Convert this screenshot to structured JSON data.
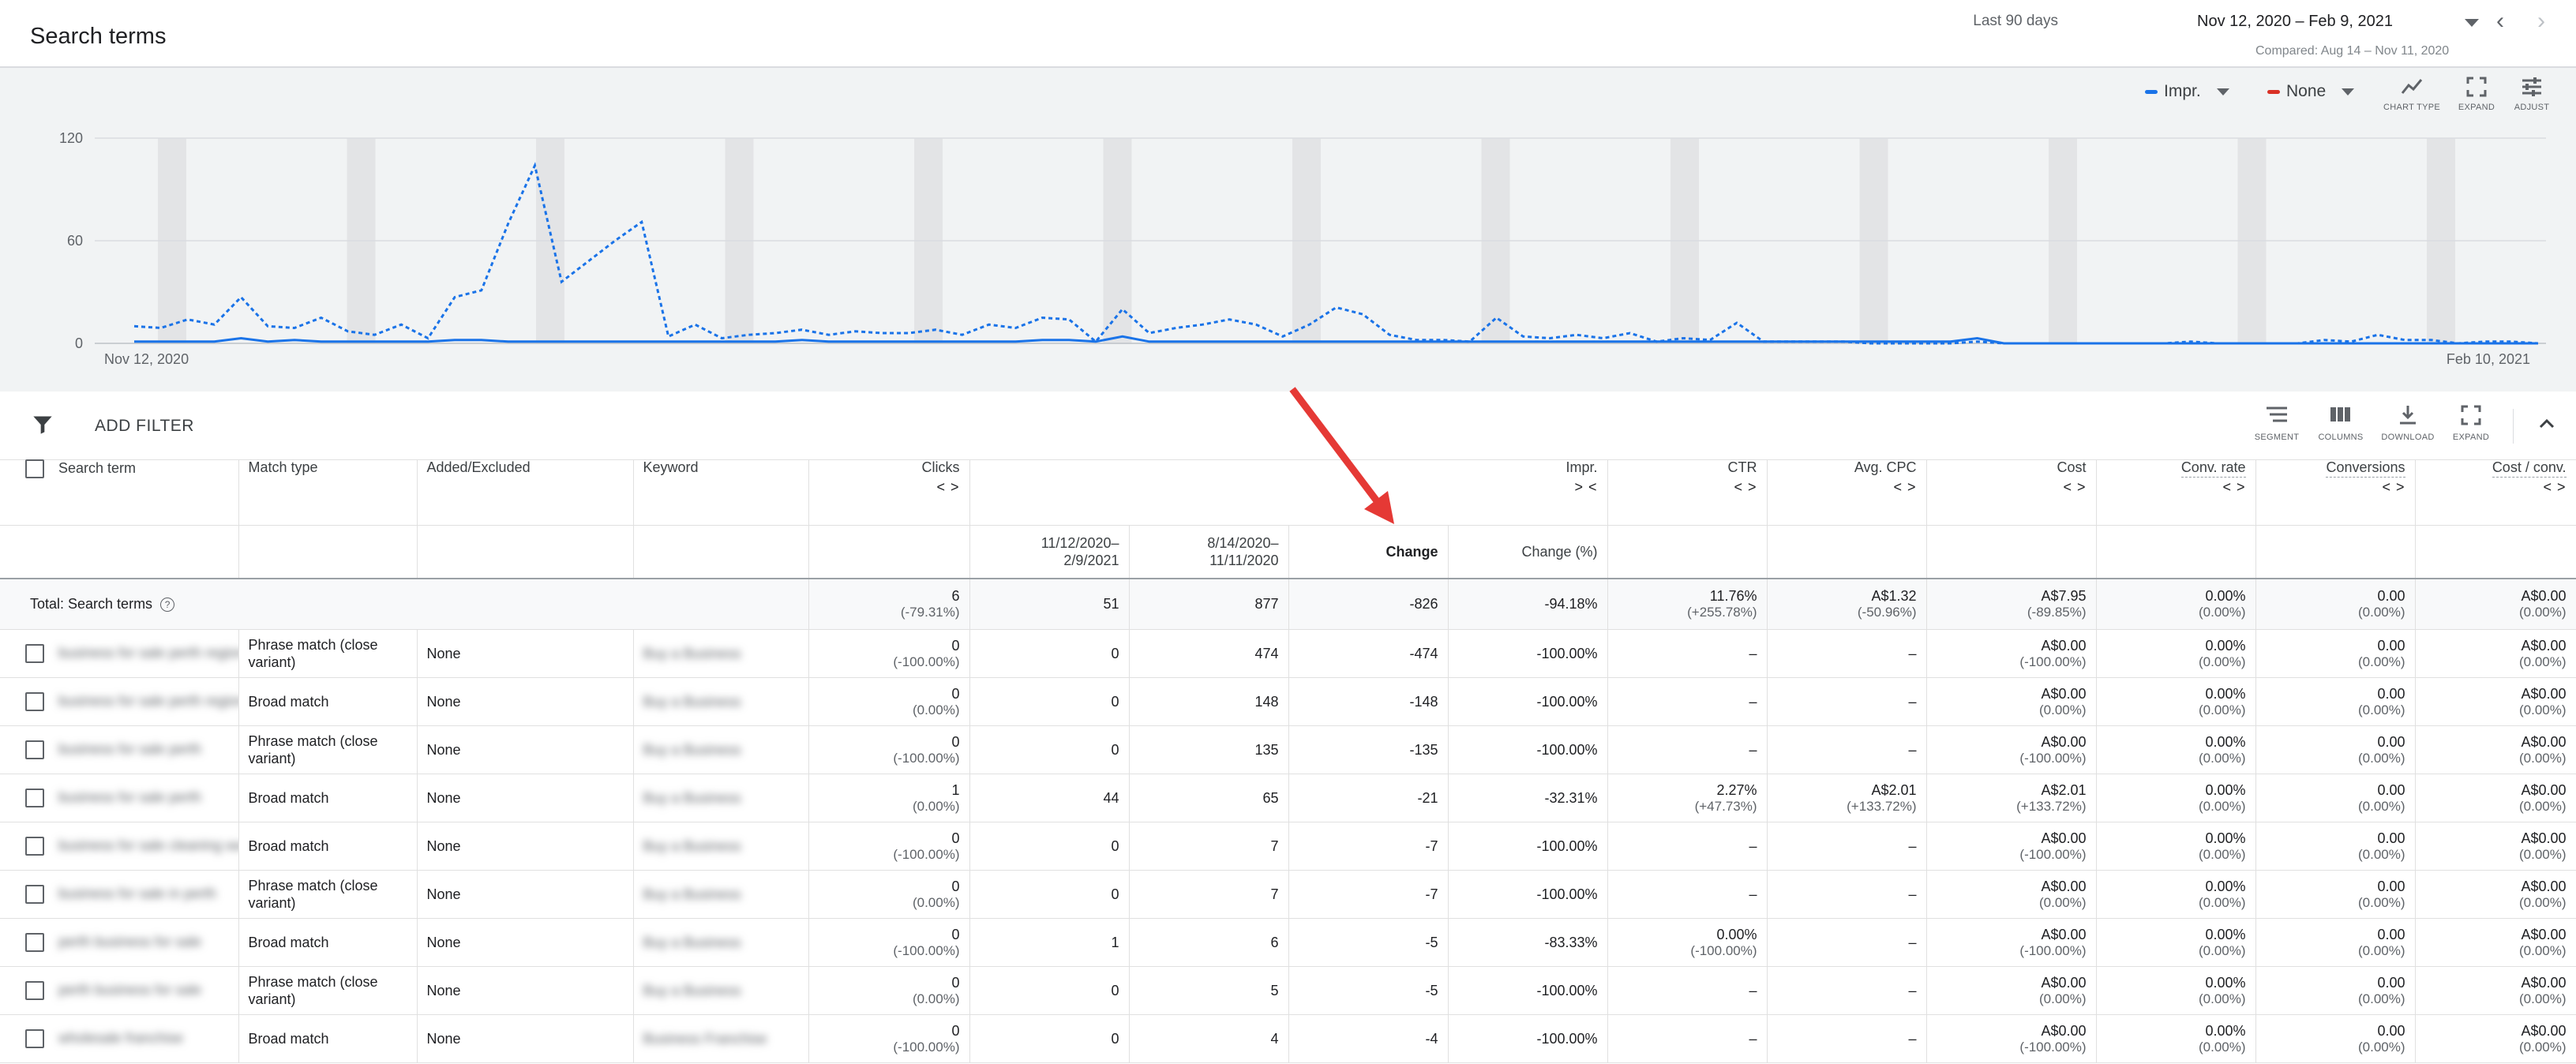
{
  "header": {
    "title": "Search terms",
    "date_label": "Last 90 days",
    "date_range": "Nov 12, 2020 – Feb 9, 2021",
    "compared": "Compared: Aug 14 – Nov 11, 2020"
  },
  "chart_controls": {
    "metric1": "Impr.",
    "metric2": "None",
    "chart_type_label": "CHART TYPE",
    "expand_label": "EXPAND",
    "adjust_label": "ADJUST",
    "colors": {
      "metric1": "#1a73e8",
      "metric2": "#d93025"
    }
  },
  "chart_data": {
    "type": "line",
    "ylim": [
      0,
      120
    ],
    "yticks": [
      "120",
      "60",
      "0"
    ],
    "x_start_label": "Nov 12, 2020",
    "x_end_label": "Feb 10, 2021",
    "series": [
      {
        "style": "dashed",
        "values": [
          10,
          9,
          14,
          11,
          27,
          10,
          9,
          15,
          7,
          5,
          11,
          3,
          27,
          31,
          70,
          104,
          36,
          48,
          60,
          71,
          4,
          11,
          3,
          5,
          6,
          8,
          5,
          7,
          6,
          6,
          8,
          5,
          11,
          9,
          15,
          14,
          1,
          20,
          6,
          9,
          11,
          14,
          11,
          4,
          11,
          21,
          17,
          5,
          2,
          2,
          1,
          15,
          4,
          3,
          5,
          3,
          6,
          1,
          3,
          2,
          12,
          1,
          1,
          1,
          1,
          0,
          0,
          0,
          0,
          1,
          0,
          0,
          0,
          0,
          0,
          0,
          0,
          1,
          0,
          0,
          0,
          0,
          2,
          1,
          5,
          2,
          2,
          0,
          1,
          1,
          0
        ]
      },
      {
        "style": "solid",
        "values": [
          1,
          1,
          1,
          1,
          3,
          1,
          2,
          1,
          1,
          1,
          1,
          1,
          2,
          2,
          1,
          1,
          1,
          1,
          1,
          1,
          1,
          1,
          1,
          1,
          1,
          2,
          1,
          1,
          1,
          1,
          1,
          1,
          1,
          1,
          2,
          2,
          1,
          4,
          1,
          1,
          1,
          1,
          1,
          1,
          1,
          1,
          1,
          1,
          1,
          1,
          1,
          1,
          1,
          1,
          1,
          1,
          1,
          1,
          1,
          1,
          1,
          1,
          1,
          1,
          1,
          1,
          1,
          1,
          1,
          3,
          0,
          0,
          0,
          0,
          0,
          0,
          0,
          0,
          0,
          0,
          0,
          0,
          0,
          0,
          0,
          0,
          0,
          0,
          0,
          0,
          0
        ]
      }
    ]
  },
  "filter_bar": {
    "add_filter": "ADD FILTER",
    "segment": "SEGMENT",
    "columns": "COLUMNS",
    "download": "DOWNLOAD",
    "expand": "EXPAND"
  },
  "columns": {
    "search_term": "Search term",
    "match_type": "Match type",
    "added_excluded": "Added/Excluded",
    "keyword": "Keyword",
    "clicks": "Clicks",
    "impr": "Impr.",
    "ctr": "CTR",
    "avg_cpc": "Avg. CPC",
    "cost": "Cost",
    "conv_rate": "Conv. rate",
    "conversions": "Conversions",
    "cost_conv": "Cost / conv.",
    "sort_toggle": "< >",
    "sort_toggle_collapsed": "> <",
    "sub_period1": "11/12/2020–\n2/9/2021",
    "sub_period2": "8/14/2020–\n11/11/2020",
    "sub_change": "Change",
    "sub_change_pct": "Change (%)"
  },
  "total": {
    "label": "Total: Search terms",
    "clicks": "6",
    "clicks_change": "(-79.31%)",
    "impr_p1": "51",
    "impr_p2": "877",
    "impr_change": "-826",
    "impr_change_pct": "-94.18%",
    "ctr": "11.76%",
    "ctr_change": "(+255.78%)",
    "avg_cpc": "A$1.32",
    "avg_cpc_change": "(-50.96%)",
    "cost": "A$7.95",
    "cost_change": "(-89.85%)",
    "conv_rate": "0.00%",
    "conv_rate_change": "(0.00%)",
    "conversions": "0.00",
    "conversions_change": "(0.00%)",
    "cost_conv": "A$0.00",
    "cost_conv_change": "(0.00%)"
  },
  "rows": [
    {
      "term": "business for sale perth region",
      "match": "Phrase match (close variant)",
      "added": "None",
      "keyword": "Buy a Business",
      "clicks": "0",
      "clicks_change": "(-100.00%)",
      "impr_p1": "0",
      "impr_p2": "474",
      "impr_change": "-474",
      "impr_change_pct": "-100.00%",
      "ctr": "–",
      "ctr_change": "",
      "cpc": "–",
      "cpc_change": "",
      "cost": "A$0.00",
      "cost_change": "(-100.00%)",
      "conv_rate": "0.00%",
      "conv_rate_change": "(0.00%)",
      "conversions": "0.00",
      "conversions_change": "(0.00%)",
      "cost_conv": "A$0.00",
      "cost_conv_change": "(0.00%)"
    },
    {
      "term": "business for sale perth region",
      "match": "Broad match",
      "added": "None",
      "keyword": "Buy a Business",
      "clicks": "0",
      "clicks_change": "(0.00%)",
      "impr_p1": "0",
      "impr_p2": "148",
      "impr_change": "-148",
      "impr_change_pct": "-100.00%",
      "ctr": "–",
      "ctr_change": "",
      "cpc": "–",
      "cpc_change": "",
      "cost": "A$0.00",
      "cost_change": "(0.00%)",
      "conv_rate": "0.00%",
      "conv_rate_change": "(0.00%)",
      "conversions": "0.00",
      "conversions_change": "(0.00%)",
      "cost_conv": "A$0.00",
      "cost_conv_change": "(0.00%)"
    },
    {
      "term": "business for sale perth",
      "match": "Phrase match (close variant)",
      "added": "None",
      "keyword": "Buy a Business",
      "clicks": "0",
      "clicks_change": "(-100.00%)",
      "impr_p1": "0",
      "impr_p2": "135",
      "impr_change": "-135",
      "impr_change_pct": "-100.00%",
      "ctr": "–",
      "ctr_change": "",
      "cpc": "–",
      "cpc_change": "",
      "cost": "A$0.00",
      "cost_change": "(-100.00%)",
      "conv_rate": "0.00%",
      "conv_rate_change": "(0.00%)",
      "conversions": "0.00",
      "conversions_change": "(0.00%)",
      "cost_conv": "A$0.00",
      "cost_conv_change": "(0.00%)"
    },
    {
      "term": "business for sale perth",
      "match": "Broad match",
      "added": "None",
      "keyword": "Buy a Business",
      "clicks": "1",
      "clicks_change": "(0.00%)",
      "impr_p1": "44",
      "impr_p2": "65",
      "impr_change": "-21",
      "impr_change_pct": "-32.31%",
      "ctr": "2.27%",
      "ctr_change": "(+47.73%)",
      "cpc": "A$2.01",
      "cpc_change": "(+133.72%)",
      "cost": "A$2.01",
      "cost_change": "(+133.72%)",
      "conv_rate": "0.00%",
      "conv_rate_change": "(0.00%)",
      "conversions": "0.00",
      "conversions_change": "(0.00%)",
      "cost_conv": "A$0.00",
      "cost_conv_change": "(0.00%)"
    },
    {
      "term": "business for sale cleaning wa",
      "match": "Broad match",
      "added": "None",
      "keyword": "Buy a Business",
      "clicks": "0",
      "clicks_change": "(-100.00%)",
      "impr_p1": "0",
      "impr_p2": "7",
      "impr_change": "-7",
      "impr_change_pct": "-100.00%",
      "ctr": "–",
      "ctr_change": "",
      "cpc": "–",
      "cpc_change": "",
      "cost": "A$0.00",
      "cost_change": "(-100.00%)",
      "conv_rate": "0.00%",
      "conv_rate_change": "(0.00%)",
      "conversions": "0.00",
      "conversions_change": "(0.00%)",
      "cost_conv": "A$0.00",
      "cost_conv_change": "(0.00%)"
    },
    {
      "term": "business for sale in perth",
      "match": "Phrase match (close variant)",
      "added": "None",
      "keyword": "Buy a Business",
      "clicks": "0",
      "clicks_change": "(0.00%)",
      "impr_p1": "0",
      "impr_p2": "7",
      "impr_change": "-7",
      "impr_change_pct": "-100.00%",
      "ctr": "–",
      "ctr_change": "",
      "cpc": "–",
      "cpc_change": "",
      "cost": "A$0.00",
      "cost_change": "(0.00%)",
      "conv_rate": "0.00%",
      "conv_rate_change": "(0.00%)",
      "conversions": "0.00",
      "conversions_change": "(0.00%)",
      "cost_conv": "A$0.00",
      "cost_conv_change": "(0.00%)"
    },
    {
      "term": "perth business for sale",
      "match": "Broad match",
      "added": "None",
      "keyword": "Buy a Business",
      "clicks": "0",
      "clicks_change": "(-100.00%)",
      "impr_p1": "1",
      "impr_p2": "6",
      "impr_change": "-5",
      "impr_change_pct": "-83.33%",
      "ctr": "0.00%",
      "ctr_change": "(-100.00%)",
      "cpc": "–",
      "cpc_change": "",
      "cost": "A$0.00",
      "cost_change": "(-100.00%)",
      "conv_rate": "0.00%",
      "conv_rate_change": "(0.00%)",
      "conversions": "0.00",
      "conversions_change": "(0.00%)",
      "cost_conv": "A$0.00",
      "cost_conv_change": "(0.00%)"
    },
    {
      "term": "perth business for sale",
      "match": "Phrase match (close variant)",
      "added": "None",
      "keyword": "Buy a Business",
      "clicks": "0",
      "clicks_change": "(0.00%)",
      "impr_p1": "0",
      "impr_p2": "5",
      "impr_change": "-5",
      "impr_change_pct": "-100.00%",
      "ctr": "–",
      "ctr_change": "",
      "cpc": "–",
      "cpc_change": "",
      "cost": "A$0.00",
      "cost_change": "(0.00%)",
      "conv_rate": "0.00%",
      "conv_rate_change": "(0.00%)",
      "conversions": "0.00",
      "conversions_change": "(0.00%)",
      "cost_conv": "A$0.00",
      "cost_conv_change": "(0.00%)"
    },
    {
      "term": "wholesale franchise",
      "match": "Broad match",
      "added": "None",
      "keyword": "Business Franchise",
      "clicks": "0",
      "clicks_change": "(-100.00%)",
      "impr_p1": "0",
      "impr_p2": "4",
      "impr_change": "-4",
      "impr_change_pct": "-100.00%",
      "ctr": "–",
      "ctr_change": "",
      "cpc": "–",
      "cpc_change": "",
      "cost": "A$0.00",
      "cost_change": "(-100.00%)",
      "conv_rate": "0.00%",
      "conv_rate_change": "(0.00%)",
      "conversions": "0.00",
      "conversions_change": "(0.00%)",
      "cost_conv": "A$0.00",
      "cost_conv_change": "(0.00%)"
    }
  ]
}
